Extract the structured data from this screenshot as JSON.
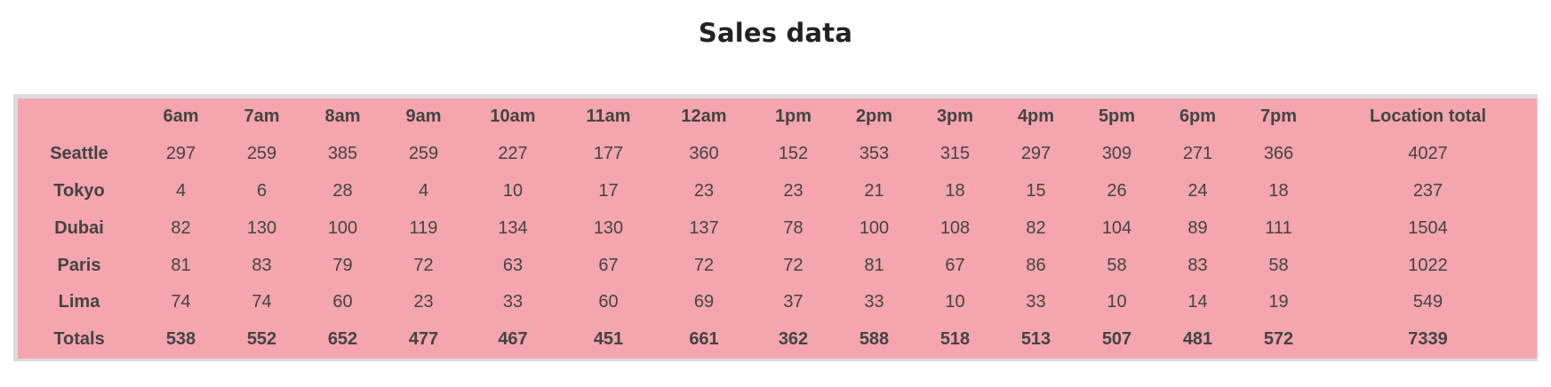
{
  "page": {
    "title": "Sales data"
  },
  "table": {
    "corner": "",
    "hours": [
      "6am",
      "7am",
      "8am",
      "9am",
      "10am",
      "11am",
      "12am",
      "1pm",
      "2pm",
      "3pm",
      "4pm",
      "5pm",
      "6pm",
      "7pm"
    ],
    "total_header": "Location total",
    "rows": [
      {
        "location": "Seattle",
        "values": [
          "297",
          "259",
          "385",
          "259",
          "227",
          "177",
          "360",
          "152",
          "353",
          "315",
          "297",
          "309",
          "271",
          "366"
        ],
        "total": "4027"
      },
      {
        "location": "Tokyo",
        "values": [
          "4",
          "6",
          "28",
          "4",
          "10",
          "17",
          "23",
          "23",
          "21",
          "18",
          "15",
          "26",
          "24",
          "18"
        ],
        "total": "237"
      },
      {
        "location": "Dubai",
        "values": [
          "82",
          "130",
          "100",
          "119",
          "134",
          "130",
          "137",
          "78",
          "100",
          "108",
          "82",
          "104",
          "89",
          "111"
        ],
        "total": "1504"
      },
      {
        "location": "Paris",
        "values": [
          "81",
          "83",
          "79",
          "72",
          "63",
          "67",
          "72",
          "72",
          "81",
          "67",
          "86",
          "58",
          "83",
          "58"
        ],
        "total": "1022"
      },
      {
        "location": "Lima",
        "values": [
          "74",
          "74",
          "60",
          "23",
          "33",
          "60",
          "69",
          "37",
          "33",
          "10",
          "33",
          "10",
          "14",
          "19"
        ],
        "total": "549"
      }
    ],
    "totals": {
      "label": "Totals",
      "values": [
        "538",
        "552",
        "652",
        "477",
        "467",
        "451",
        "661",
        "362",
        "588",
        "518",
        "513",
        "507",
        "481",
        "572"
      ],
      "total": "7339"
    }
  },
  "colors": {
    "table_background": "#f4a5ae",
    "frame_border": "#dcdcdc",
    "text": "#444444",
    "title": "#222222"
  }
}
